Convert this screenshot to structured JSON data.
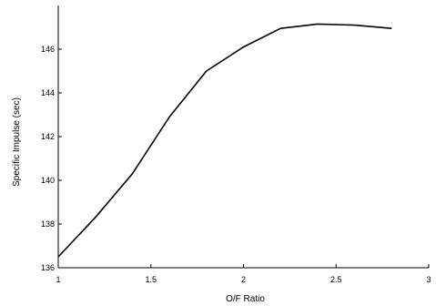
{
  "chart_data": {
    "type": "line",
    "title": "",
    "xlabel": "O/F Ratio",
    "ylabel": "Specific Impulse (sec)",
    "xlim": [
      1,
      3
    ],
    "ylim": [
      136,
      148
    ],
    "xticks": [
      1,
      1.5,
      2,
      2.5,
      3
    ],
    "xtick_labels": [
      "1",
      "1.5",
      "2",
      "2.5",
      "3"
    ],
    "yticks": [
      136,
      138,
      140,
      142,
      144,
      146
    ],
    "ytick_labels": [
      "136",
      "138",
      "140",
      "142",
      "144",
      "146"
    ],
    "grid": false,
    "legend": "none",
    "series": [
      {
        "x": [
          1.0,
          1.2,
          1.4,
          1.6,
          1.8,
          2.0,
          2.2,
          2.4,
          2.6,
          2.8
        ],
        "y": [
          136.5,
          138.3,
          140.3,
          142.9,
          145.0,
          146.1,
          146.95,
          147.15,
          147.1,
          146.95
        ],
        "color": "#000000"
      }
    ]
  }
}
